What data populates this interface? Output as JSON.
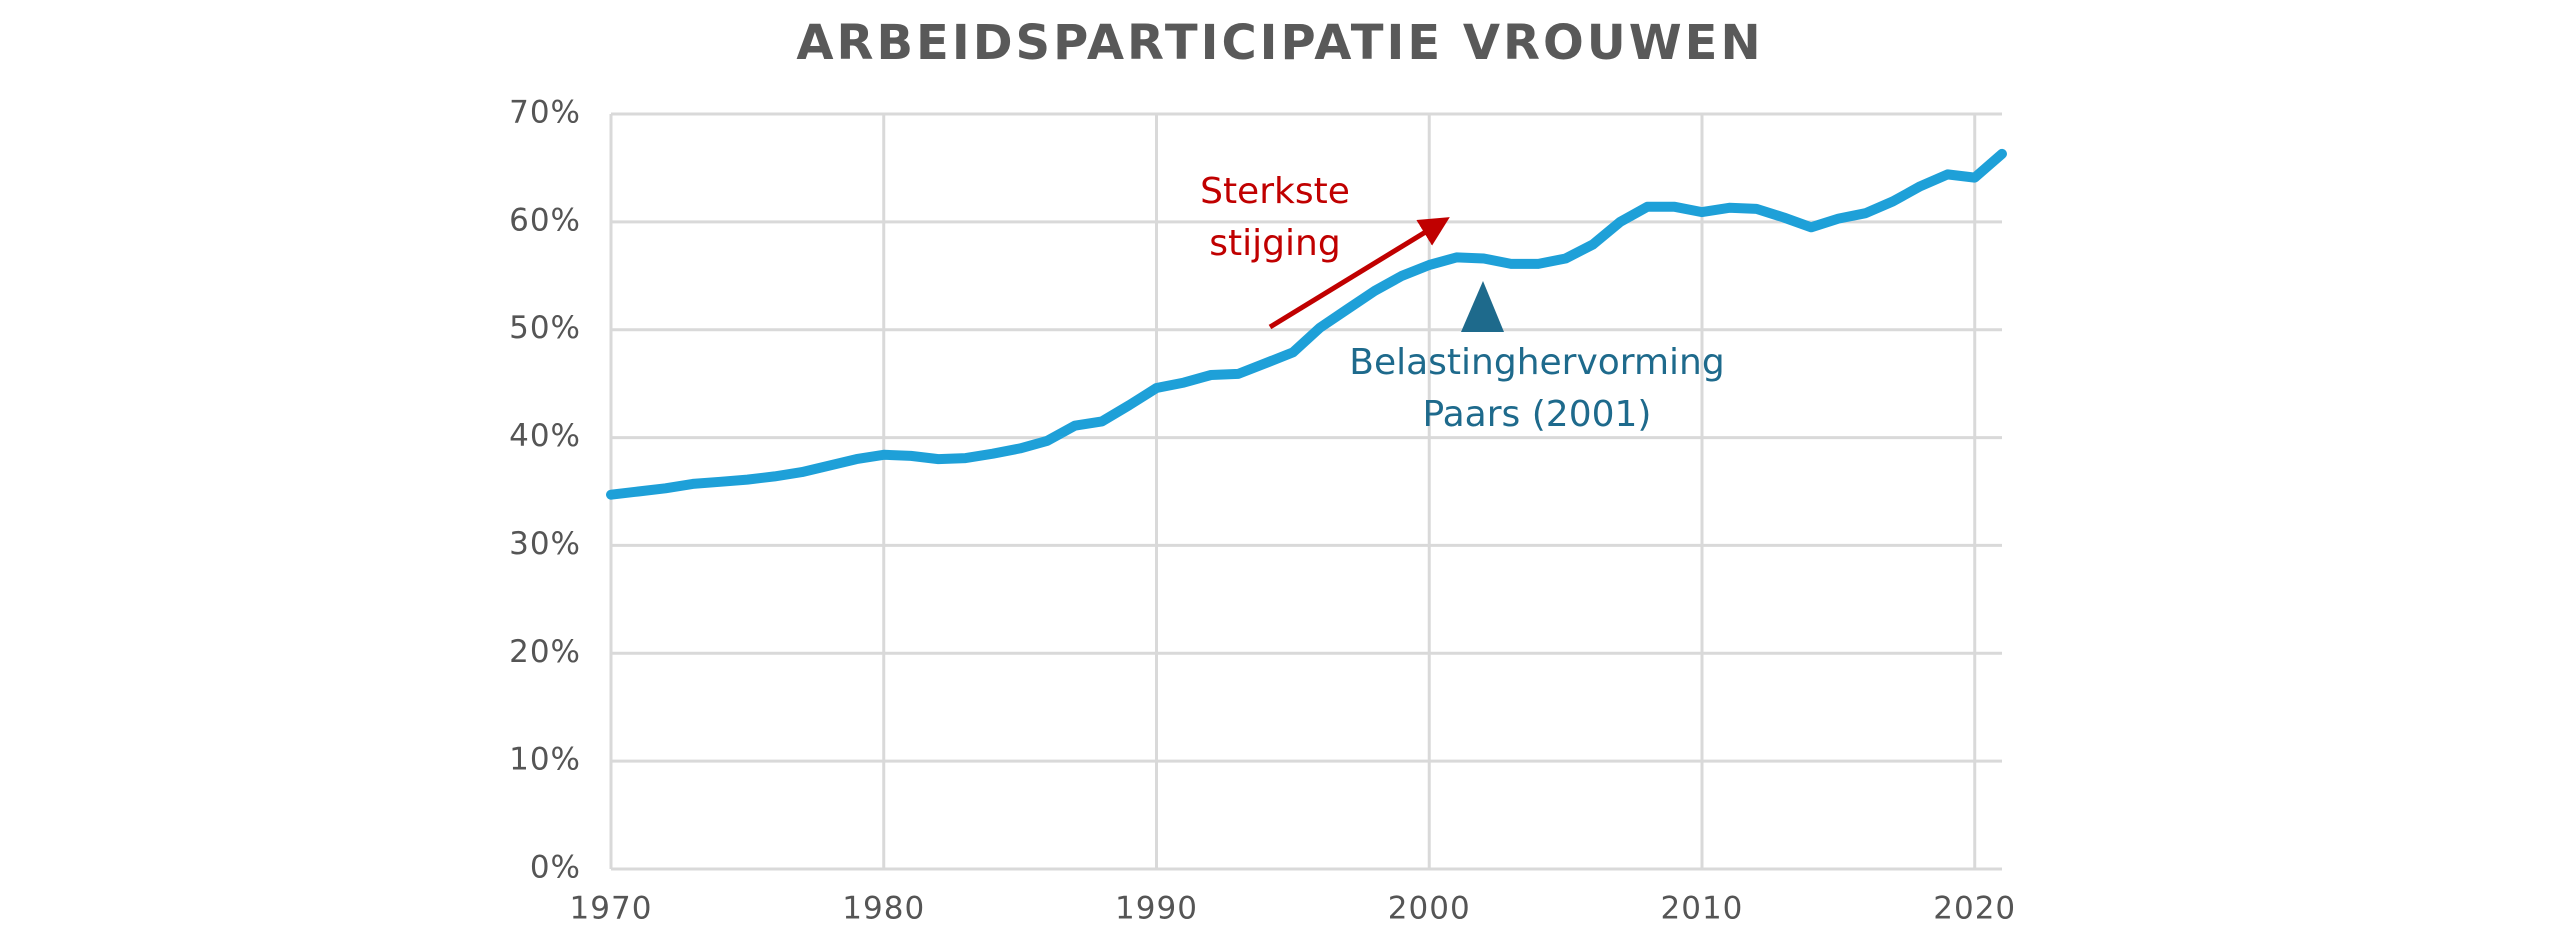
{
  "chart_data": {
    "type": "line",
    "title": "ARBEIDSPARTICIPATIE VROUWEN",
    "x": [
      1970,
      1971,
      1972,
      1973,
      1974,
      1975,
      1976,
      1977,
      1978,
      1979,
      1980,
      1981,
      1982,
      1983,
      1984,
      1985,
      1986,
      1987,
      1988,
      1989,
      1990,
      1991,
      1992,
      1993,
      1994,
      1995,
      1996,
      1997,
      1998,
      1999,
      2000,
      2001,
      2002,
      2003,
      2004,
      2005,
      2006,
      2007,
      2008,
      2009,
      2010,
      2011,
      2012,
      2013,
      2014,
      2015,
      2016,
      2017,
      2018,
      2019,
      2020,
      2021
    ],
    "values": [
      34.7,
      35.0,
      35.3,
      35.7,
      35.9,
      36.1,
      36.4,
      36.8,
      37.4,
      38.0,
      38.4,
      38.3,
      38.0,
      38.1,
      38.5,
      39.0,
      39.7,
      41.1,
      41.5,
      43.0,
      44.6,
      45.1,
      45.8,
      45.9,
      46.9,
      47.9,
      50.2,
      51.9,
      53.6,
      55.0,
      56.0,
      56.7,
      56.6,
      56.1,
      56.1,
      56.6,
      57.9,
      60.0,
      61.4,
      61.4,
      60.9,
      61.3,
      61.2,
      60.4,
      59.5,
      60.3,
      60.8,
      61.9,
      63.3,
      64.4,
      64.1,
      66.3
    ],
    "color": "#1ea0d8",
    "xlim": [
      1970,
      2021
    ],
    "xticks": [
      1970,
      1980,
      1990,
      2000,
      2010,
      2020
    ],
    "ylim": [
      0,
      70
    ],
    "yticks": [
      {
        "value": 0,
        "label": "0%"
      },
      {
        "value": 10,
        "label": "10%"
      },
      {
        "value": 20,
        "label": "20%"
      },
      {
        "value": 30,
        "label": "30%"
      },
      {
        "value": 40,
        "label": "40%"
      },
      {
        "value": 50,
        "label": "50%"
      },
      {
        "value": 60,
        "label": "60%"
      },
      {
        "value": 70,
        "label": "70%"
      }
    ],
    "grid": true,
    "annotations": [
      {
        "text": [
          "Sterkste",
          "stijging"
        ],
        "color": "#c00000"
      },
      {
        "text": [
          "Belastinghervorming",
          "Paars (2001)"
        ],
        "color": "#1e6a8c"
      }
    ]
  }
}
